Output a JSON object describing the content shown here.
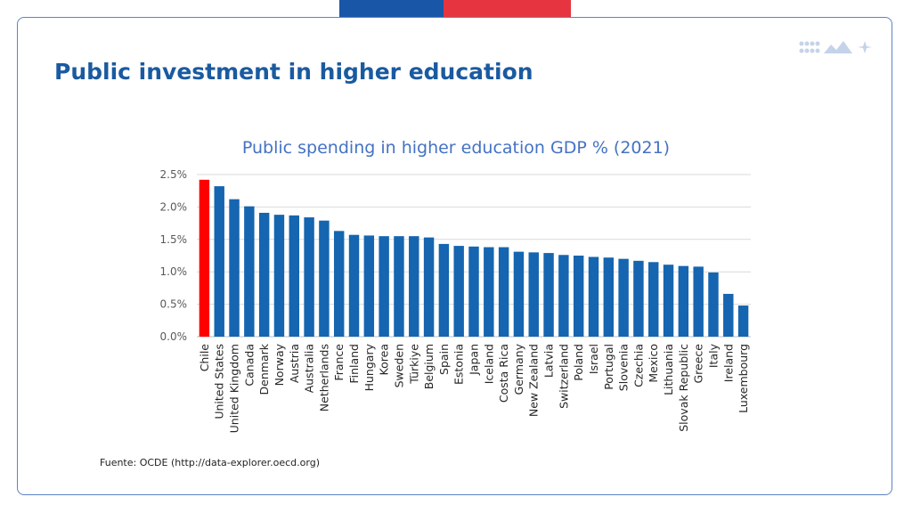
{
  "header": {
    "title": "Public investment in higher education"
  },
  "source": "Fuente: OCDE (http://data-explorer.oecd.org)",
  "colors": {
    "highlight": "#ff0000",
    "bar": "#1565b0",
    "flag_blue": "#1a56a8",
    "flag_red": "#e63541"
  },
  "chart_data": {
    "type": "bar",
    "title": "Public spending in higher education GDP  % (2021)",
    "xlabel": "",
    "ylabel": "",
    "ylim": [
      0,
      2.5
    ],
    "yticks": [
      "0.0%",
      "0.5%",
      "1.0%",
      "1.5%",
      "2.0%",
      "2.5%"
    ],
    "grid": true,
    "categories": [
      "Chile",
      "United States",
      "United Kingdom",
      "Canada",
      "Denmark",
      "Norway",
      "Austria",
      "Australia",
      "Netherlands",
      "France",
      "Finland",
      "Hungary",
      "Korea",
      "Sweden",
      "Türkiye",
      "Belgium",
      "Spain",
      "Estonia",
      "Japan",
      "Iceland",
      "Costa Rica",
      "Germany",
      "New Zealand",
      "Latvia",
      "Switzerland",
      "Poland",
      "Israel",
      "Portugal",
      "Slovenia",
      "Czechia",
      "Mexico",
      "Lithuania",
      "Slovak Republic",
      "Greece",
      "Italy",
      "Ireland",
      "Luxembourg"
    ],
    "values": [
      2.42,
      2.32,
      2.12,
      2.01,
      1.91,
      1.88,
      1.87,
      1.84,
      1.79,
      1.63,
      1.57,
      1.56,
      1.55,
      1.55,
      1.55,
      1.53,
      1.43,
      1.4,
      1.39,
      1.38,
      1.38,
      1.31,
      1.3,
      1.29,
      1.26,
      1.25,
      1.23,
      1.22,
      1.2,
      1.17,
      1.15,
      1.11,
      1.09,
      1.08,
      0.99,
      0.66,
      0.48
    ],
    "highlight_category": "Chile"
  }
}
